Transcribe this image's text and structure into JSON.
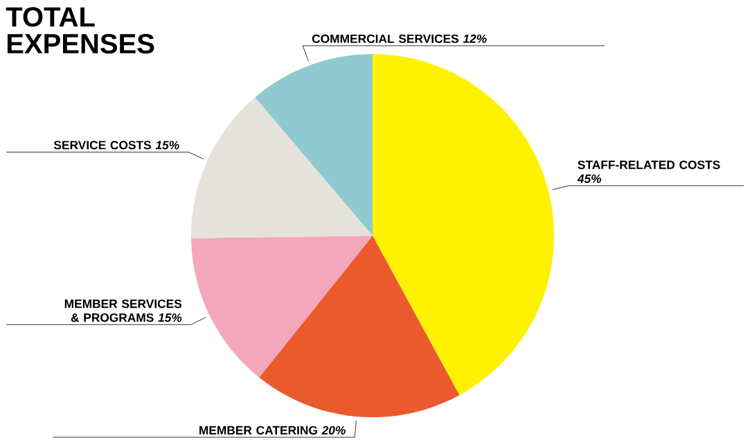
{
  "chart_data": {
    "type": "pie",
    "title": "TOTAL EXPENSES",
    "categories": [
      "STAFF-RELATED COSTS",
      "MEMBER CATERING",
      "MEMBER SERVICES & PROGRAMS",
      "SERVICE COSTS",
      "COMMERCIAL SERVICES"
    ],
    "values": [
      45,
      20,
      15,
      15,
      12
    ],
    "value_labels": [
      "45%",
      "20%",
      "15%",
      "15%",
      "12%"
    ],
    "colors": [
      "#fff200",
      "#eb5a2d",
      "#f4a6bc",
      "#e5e2dc",
      "#8ecad0"
    ]
  }
}
